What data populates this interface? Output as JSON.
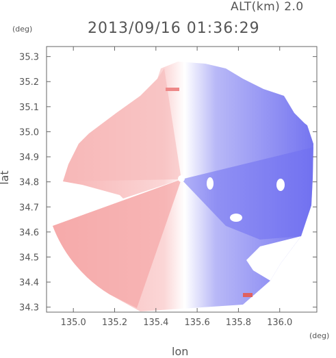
{
  "header": {
    "altitude_label": "ALT(km) 2.0",
    "timestamp": "2013/09/16 01:36:29",
    "y_unit": "(deg)",
    "x_unit": "(deg)"
  },
  "chart_data": {
    "type": "heatmap",
    "title": "2013/09/16 01:36:29",
    "subtitle": "ALT(km) 2.0",
    "xlabel": "lon",
    "ylabel": "lat",
    "x_unit": "(deg)",
    "y_unit": "(deg)",
    "xlim": [
      134.87,
      136.18
    ],
    "ylim": [
      34.28,
      35.34
    ],
    "x_ticks": [
      "135.0",
      "135.2",
      "135.4",
      "135.6",
      "135.8",
      "136.0"
    ],
    "y_ticks": [
      "34.3",
      "34.4",
      "34.5",
      "34.6",
      "34.7",
      "34.8",
      "34.9",
      "35.0",
      "35.1",
      "35.2",
      "35.3"
    ],
    "radar_center": {
      "lon": 135.52,
      "lat": 34.82
    },
    "colors": {
      "negative": "#6e6ef2",
      "zero": "#ffffff",
      "positive": "#f5a3a3"
    },
    "grid": false
  }
}
